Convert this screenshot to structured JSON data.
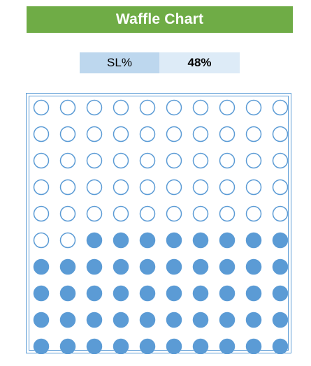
{
  "title": "Waffle Chart",
  "kpi": {
    "label": "SL%",
    "value": "48%"
  },
  "colors": {
    "title_background": "#6fac46",
    "title_text": "#ffffff",
    "label_background": "#bdd7ee",
    "value_background": "#ddebf7",
    "dot": "#5b9bd5"
  },
  "chart_data": {
    "type": "waffle",
    "title": "Waffle Chart",
    "rows": 10,
    "columns": 10,
    "filled_percent": 48,
    "fill_direction": "bottom-up, right-to-left within partial row"
  }
}
